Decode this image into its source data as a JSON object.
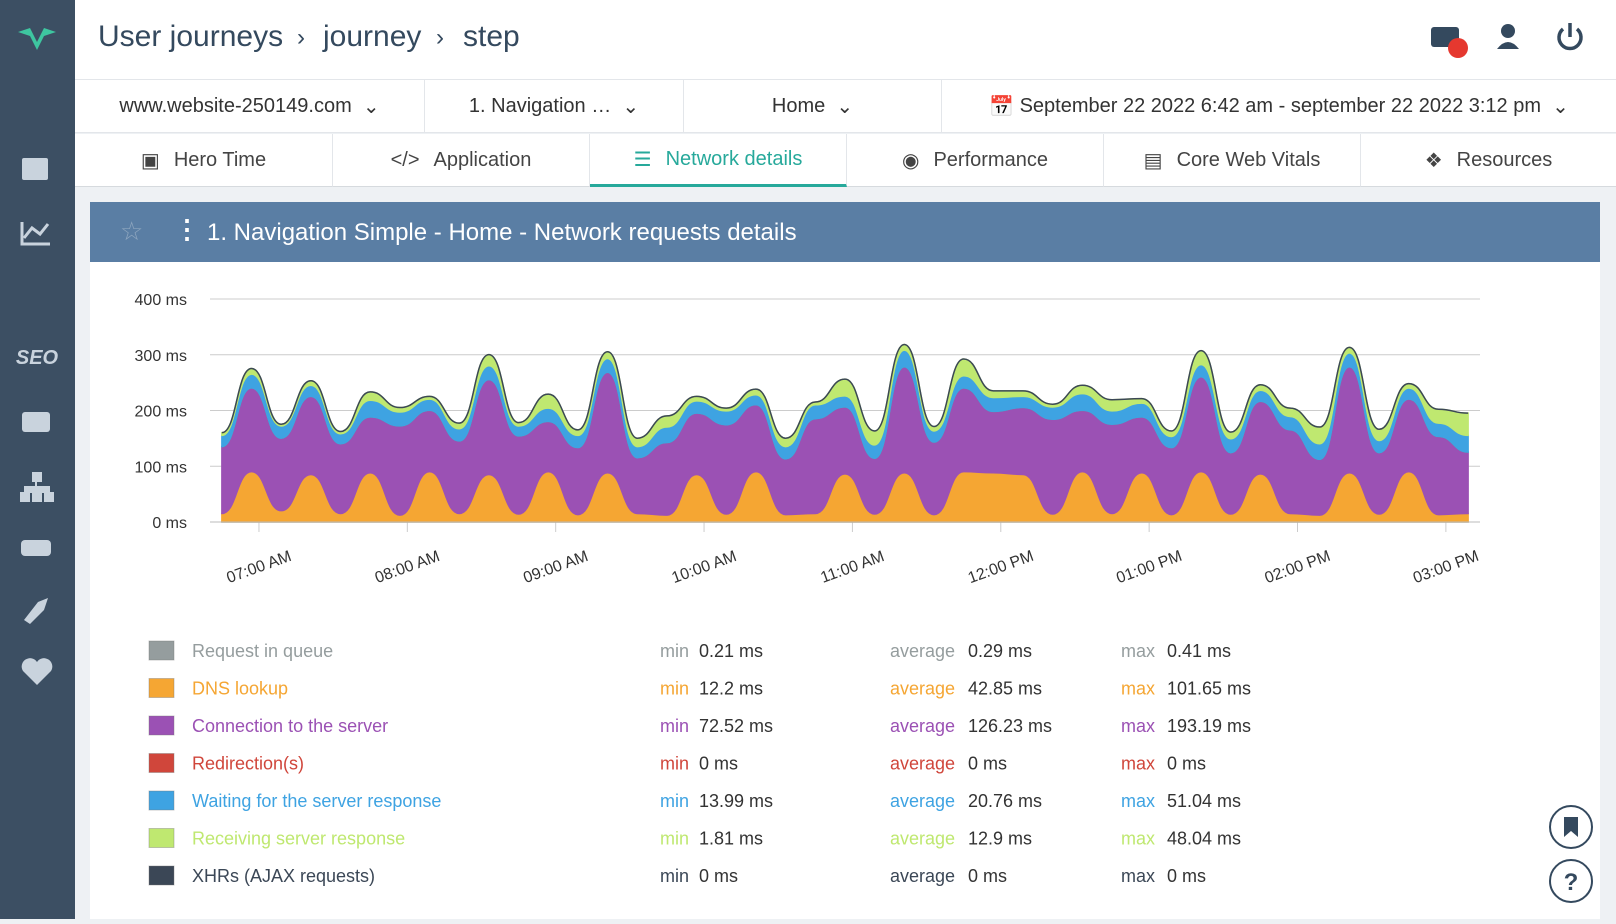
{
  "header": {
    "breadcrumb": [
      "User journeys",
      "journey",
      "step"
    ]
  },
  "sidebar": {
    "label": "SEO"
  },
  "filters": [
    "www.website-250149.com",
    "1. Navigation …",
    "Home",
    "September 22 2022 6:42 am - september 22 2022 3:12 pm"
  ],
  "tabs": [
    "Hero Time",
    "Application",
    "Network details",
    "Performance",
    "Core Web Vitals",
    "Resources"
  ],
  "panel": {
    "title": "1. Navigation Simple - Home - Network requests details"
  },
  "chart_data": {
    "type": "stacked-area",
    "x": [
      6.75,
      6.95,
      7.15,
      7.35,
      7.55,
      7.75,
      7.95,
      8.15,
      8.35,
      8.55,
      8.75,
      8.95,
      9.15,
      9.35,
      9.55,
      9.75,
      9.95,
      10.15,
      10.35,
      10.55,
      10.75,
      10.95,
      11.15,
      11.35,
      11.55,
      11.75,
      11.95,
      12.15,
      12.35,
      12.55,
      12.75,
      12.95,
      13.15,
      13.35,
      13.55,
      13.75,
      13.95,
      14.15,
      14.35,
      14.55,
      14.75,
      14.95,
      15.15
    ],
    "xlim": [
      6.67,
      15.23
    ],
    "xticks": [
      {
        "value": 7,
        "label": "07:00 AM"
      },
      {
        "value": 8,
        "label": "08:00 AM"
      },
      {
        "value": 9,
        "label": "09:00 AM"
      },
      {
        "value": 10,
        "label": "10:00 AM"
      },
      {
        "value": 11,
        "label": "11:00 AM"
      },
      {
        "value": 12,
        "label": "12:00 PM"
      },
      {
        "value": 13,
        "label": "01:00 PM"
      },
      {
        "value": 14,
        "label": "02:00 PM"
      },
      {
        "value": 15,
        "label": "03:00 PM"
      }
    ],
    "ylim": [
      0,
      400
    ],
    "yticks": [
      {
        "value": 0,
        "label": "0 ms"
      },
      {
        "value": 100,
        "label": "100 ms"
      },
      {
        "value": 200,
        "label": "200 ms"
      },
      {
        "value": 300,
        "label": "300 ms"
      },
      {
        "value": 400,
        "label": "400 ms"
      }
    ],
    "grid": true,
    "stat_labels": {
      "min": "min",
      "average": "average",
      "max": "max"
    },
    "series": [
      {
        "name": "Request in queue",
        "color": "#959d9e",
        "values": [
          0.3,
          0.3,
          0.3,
          0.3,
          0.3,
          0.3,
          0.3,
          0.3,
          0.3,
          0.3,
          0.3,
          0.3,
          0.3,
          0.3,
          0.3,
          0.3,
          0.3,
          0.3,
          0.3,
          0.3,
          0.3,
          0.3,
          0.3,
          0.3,
          0.3,
          0.3,
          0.3,
          0.3,
          0.3,
          0.3,
          0.3,
          0.3,
          0.3,
          0.3,
          0.3,
          0.3,
          0.3,
          0.3,
          0.3,
          0.3,
          0.3,
          0.3,
          0.3
        ],
        "stats": {
          "min": "0.21 ms",
          "average": "0.29 ms",
          "max": "0.41 ms"
        }
      },
      {
        "name": "DNS lookup",
        "color": "#f5a633",
        "values": [
          15,
          90,
          20,
          85,
          15,
          88,
          12,
          90,
          15,
          85,
          14,
          90,
          13,
          88,
          15,
          12,
          85,
          14,
          90,
          13,
          15,
          86,
          14,
          88,
          13,
          90,
          88,
          85,
          14,
          90,
          15,
          88,
          13,
          90,
          14,
          86,
          15,
          12,
          88,
          14,
          90,
          13,
          15
        ],
        "stats": {
          "min": "12.2 ms",
          "average": "42.85 ms",
          "max": "101.65 ms"
        }
      },
      {
        "name": "Connection to the server",
        "color": "#9b51b4",
        "values": [
          120,
          150,
          130,
          140,
          125,
          100,
          160,
          110,
          130,
          170,
          140,
          90,
          120,
          180,
          100,
          130,
          110,
          160,
          120,
          100,
          170,
          120,
          100,
          190,
          130,
          150,
          110,
          120,
          170,
          110,
          160,
          100,
          120,
          170,
          110,
          130,
          150,
          100,
          190,
          110,
          130,
          140,
          110
        ],
        "stats": {
          "min": "72.52 ms",
          "average": "126.23 ms",
          "max": "193.19 ms"
        }
      },
      {
        "name": "Redirection(s)",
        "color": "#d0463b",
        "values": [
          0,
          0,
          0,
          0,
          0,
          0,
          0,
          0,
          0,
          0,
          0,
          0,
          0,
          0,
          0,
          0,
          0,
          0,
          0,
          0,
          0,
          0,
          0,
          0,
          0,
          0,
          0,
          0,
          0,
          0,
          0,
          0,
          0,
          0,
          0,
          0,
          0,
          0,
          0,
          0,
          0,
          0,
          0
        ],
        "stats": {
          "min": "0 ms",
          "average": "0 ms",
          "max": "0 ms"
        }
      },
      {
        "name": "Waiting for the server response",
        "color": "#3ea3e2",
        "values": [
          20,
          25,
          22,
          20,
          18,
          30,
          25,
          20,
          22,
          25,
          18,
          24,
          22,
          25,
          20,
          28,
          22,
          25,
          18,
          22,
          25,
          20,
          24,
          30,
          20,
          22,
          25,
          20,
          22,
          30,
          24,
          25,
          20,
          22,
          25,
          20,
          24,
          28,
          25,
          22,
          20,
          24,
          30
        ],
        "stats": {
          "min": "13.99 ms",
          "average": "20.76 ms",
          "max": "51.04 ms"
        }
      },
      {
        "name": "Receiving server response",
        "color": "#bfe870",
        "values": [
          5,
          10,
          3,
          8,
          4,
          15,
          8,
          5,
          10,
          20,
          6,
          25,
          10,
          12,
          15,
          20,
          8,
          5,
          10,
          15,
          5,
          30,
          25,
          10,
          8,
          30,
          12,
          10,
          5,
          15,
          20,
          8,
          10,
          25,
          12,
          10,
          15,
          30,
          10,
          20,
          8,
          25,
          40
        ],
        "stats": {
          "min": "1.81 ms",
          "average": "12.9 ms",
          "max": "48.04 ms"
        }
      },
      {
        "name": "XHRs (AJAX requests)",
        "color": "#3b4756",
        "values": [
          0,
          0,
          0,
          0,
          0,
          0,
          0,
          0,
          0,
          0,
          0,
          0,
          0,
          0,
          0,
          0,
          0,
          0,
          0,
          0,
          0,
          0,
          0,
          0,
          0,
          0,
          0,
          0,
          0,
          0,
          0,
          0,
          0,
          0,
          0,
          0,
          0,
          0,
          0,
          0,
          0,
          0,
          0
        ],
        "stats": {
          "min": "0 ms",
          "average": "0 ms",
          "max": "0 ms"
        }
      }
    ]
  }
}
